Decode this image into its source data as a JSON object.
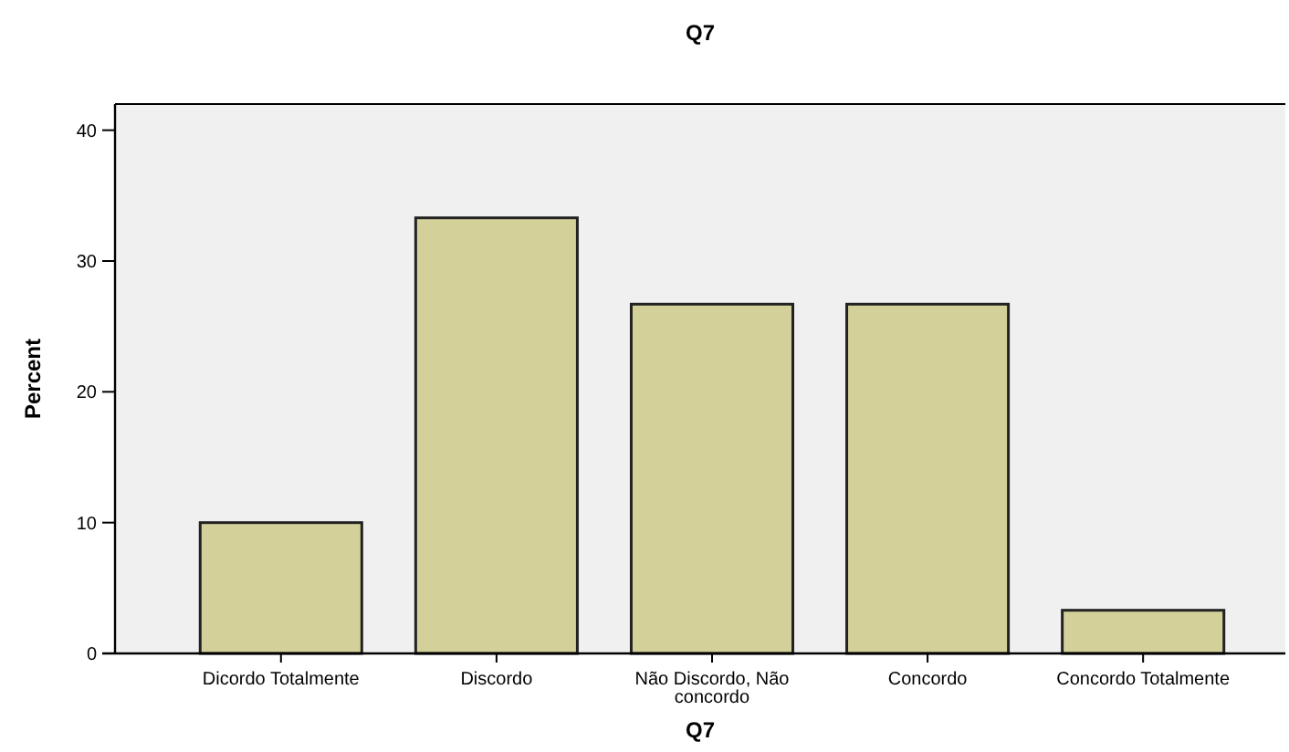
{
  "chart_data": {
    "type": "bar",
    "title": "Q7",
    "xlabel": "Q7",
    "ylabel": "Percent",
    "categories": [
      "Dicordo Totalmente",
      "Discordo",
      "Não Discordo, Não concordo",
      "Concordo",
      "Concordo Totalmente"
    ],
    "values": [
      10,
      33.3,
      26.7,
      26.7,
      3.3
    ],
    "color": "#d3d09a",
    "ylim": [
      0,
      42
    ],
    "yticks": [
      0,
      10,
      20,
      30,
      40
    ],
    "grid": false
  }
}
